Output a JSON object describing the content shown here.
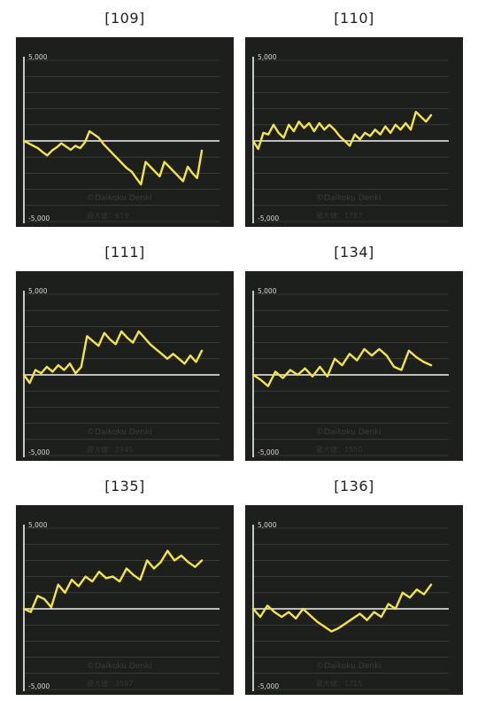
{
  "chart_data": [
    {
      "type": "line",
      "title": "[109]",
      "ytick_top": "5,000",
      "ytick_bottom": "-5,000",
      "ylim": [
        -5000,
        5000
      ],
      "gridlines": 10,
      "watermark": "©Daikoku Denki",
      "max_label": "最大値：619",
      "series": [
        {
          "color": "#f3e63c",
          "values": [
            0,
            -150,
            -300,
            -450,
            -700,
            -900,
            -600,
            -400,
            -150,
            -350,
            -550,
            -300,
            -450,
            -100,
            600,
            400,
            200,
            -200,
            -500,
            -800,
            -1100,
            -1400,
            -1700,
            -1900,
            -2300,
            -2700,
            -1300,
            -1600,
            -1900,
            -2200,
            -1300,
            -1600,
            -1900,
            -2200,
            -2500,
            -1600,
            -2000,
            -2300,
            -600
          ]
        }
      ]
    },
    {
      "type": "line",
      "title": "[110]",
      "ytick_top": "5,000",
      "ytick_bottom": "-5,000",
      "ylim": [
        -5000,
        5000
      ],
      "gridlines": 10,
      "watermark": "©Daikoku Denki",
      "max_label": "最大値：1787",
      "series": [
        {
          "color": "#f3e63c",
          "values": [
            0,
            -500,
            500,
            400,
            1000,
            500,
            200,
            1000,
            600,
            1200,
            800,
            1100,
            600,
            1100,
            700,
            1000,
            700,
            300,
            0,
            -300,
            400,
            100,
            500,
            300,
            700,
            400,
            900,
            500,
            1000,
            700,
            1100,
            700,
            1800,
            1500,
            1200,
            1600
          ]
        }
      ]
    },
    {
      "type": "line",
      "title": "[111]",
      "ytick_top": "5,000",
      "ytick_bottom": "-5,000",
      "ylim": [
        -5000,
        5000
      ],
      "gridlines": 10,
      "watermark": "©Daikoku Denki",
      "max_label": "最大値：2945",
      "series": [
        {
          "color": "#f3e63c",
          "values": [
            0,
            -500,
            300,
            100,
            500,
            200,
            600,
            300,
            700,
            100,
            500,
            2400,
            2100,
            1800,
            2600,
            2200,
            1900,
            2700,
            2300,
            2000,
            2700,
            2300,
            1900,
            1600,
            1300,
            1000,
            1300,
            1000,
            700,
            1200,
            800,
            1500
          ]
        }
      ]
    },
    {
      "type": "line",
      "title": "[134]",
      "ytick_top": "5,000",
      "ytick_bottom": "-5,000",
      "ylim": [
        -5000,
        5000
      ],
      "gridlines": 10,
      "watermark": "©Daikoku Denki",
      "max_label": "最大値：1550",
      "series": [
        {
          "color": "#f3e63c",
          "values": [
            0,
            -300,
            -700,
            200,
            -200,
            300,
            0,
            400,
            -100,
            500,
            -100,
            1000,
            600,
            1300,
            900,
            1600,
            1200,
            1600,
            1200,
            500,
            300,
            1500,
            1100,
            800,
            600
          ]
        }
      ]
    },
    {
      "type": "line",
      "title": "[135]",
      "ytick_top": "5,000",
      "ytick_bottom": "-5,000",
      "ylim": [
        -5000,
        5000
      ],
      "gridlines": 10,
      "watermark": "©Daikoku Denki",
      "max_label": "最大値：3597",
      "series": [
        {
          "color": "#f3e63c",
          "values": [
            0,
            -200,
            800,
            600,
            100,
            1500,
            1000,
            1800,
            1400,
            2000,
            1700,
            2300,
            1900,
            2000,
            1700,
            2500,
            2100,
            1800,
            3000,
            2500,
            2900,
            3600,
            3000,
            3300,
            2900,
            2600,
            3000
          ]
        }
      ]
    },
    {
      "type": "line",
      "title": "[136]",
      "ytick_top": "5,000",
      "ytick_bottom": "-5,000",
      "ylim": [
        -5000,
        5000
      ],
      "gridlines": 10,
      "watermark": "©Daikoku Denki",
      "max_label": "最大値：1715",
      "series": [
        {
          "color": "#f3e63c",
          "values": [
            0,
            -500,
            200,
            -200,
            -500,
            -200,
            -600,
            0,
            -400,
            -800,
            -1100,
            -1400,
            -1200,
            -900,
            -600,
            -300,
            -700,
            -200,
            -500,
            300,
            0,
            1000,
            700,
            1200,
            900,
            1500
          ]
        }
      ]
    }
  ]
}
